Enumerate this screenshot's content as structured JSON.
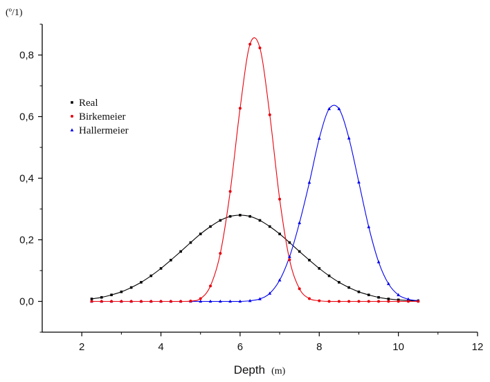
{
  "chart_data": {
    "type": "line",
    "title": "",
    "xlabel": "Depth",
    "xlabel_unit": "(m)",
    "ylabel": "(º/1)",
    "xlim": [
      1,
      12
    ],
    "ylim": [
      -0.1,
      0.9
    ],
    "xticks": [
      2,
      4,
      6,
      8,
      10,
      12
    ],
    "xtick_labels": [
      "2",
      "4",
      "6",
      "8",
      "10",
      "12"
    ],
    "yticks": [
      0.0,
      0.2,
      0.4,
      0.6,
      0.8
    ],
    "ytick_labels": [
      "0,0",
      "0,2",
      "0,4",
      "0,6",
      "0,8"
    ],
    "grid": false,
    "legend_position": "left",
    "series": [
      {
        "name": "Real",
        "color": "#000000",
        "marker": "square",
        "x": [
          2.25,
          2.5,
          2.75,
          3.0,
          3.25,
          3.5,
          3.75,
          4.0,
          4.25,
          4.5,
          4.75,
          5.0,
          5.25,
          5.5,
          5.75,
          6.0,
          6.25,
          6.5,
          6.75,
          7.0,
          7.25,
          7.5,
          7.75,
          8.0,
          8.25,
          8.5,
          8.75,
          9.0,
          9.25,
          9.5,
          9.75,
          10.0,
          10.25,
          10.5
        ],
        "y": [
          0.008,
          0.013,
          0.021,
          0.031,
          0.045,
          0.062,
          0.083,
          0.107,
          0.134,
          0.162,
          0.191,
          0.219,
          0.243,
          0.263,
          0.276,
          0.28,
          0.276,
          0.263,
          0.243,
          0.219,
          0.191,
          0.162,
          0.134,
          0.107,
          0.083,
          0.062,
          0.045,
          0.031,
          0.021,
          0.013,
          0.008,
          0.005,
          0.003,
          0.002
        ]
      },
      {
        "name": "Birkemeier",
        "color": "#e8000b",
        "marker": "circle",
        "x": [
          2.25,
          2.5,
          2.75,
          3.0,
          3.25,
          3.5,
          3.75,
          4.0,
          4.25,
          4.5,
          4.75,
          5.0,
          5.25,
          5.5,
          5.75,
          6.0,
          6.25,
          6.5,
          6.75,
          7.0,
          7.25,
          7.5,
          7.75,
          8.0,
          8.25,
          8.5,
          8.75,
          9.0,
          9.25,
          9.5,
          9.75,
          10.0,
          10.25,
          10.5
        ],
        "y": [
          0.0,
          0.0,
          0.0,
          0.0,
          0.0,
          0.0,
          0.0,
          0.0,
          0.0,
          0.0,
          0.001,
          0.009,
          0.05,
          0.156,
          0.357,
          0.627,
          0.835,
          0.823,
          0.606,
          0.332,
          0.135,
          0.041,
          0.009,
          0.002,
          0.0,
          0.0,
          0.0,
          0.0,
          0.0,
          0.0,
          0.0,
          0.0,
          0.0,
          0.0
        ]
      },
      {
        "name": "Hallermeier",
        "color": "#0000ee",
        "marker": "triangle",
        "x": [
          2.25,
          2.5,
          2.75,
          3.0,
          3.25,
          3.5,
          3.75,
          4.0,
          4.25,
          4.5,
          4.75,
          5.0,
          5.25,
          5.5,
          5.75,
          6.0,
          6.25,
          6.5,
          6.75,
          7.0,
          7.25,
          7.5,
          7.75,
          8.0,
          8.25,
          8.5,
          8.75,
          9.0,
          9.25,
          9.5,
          9.75,
          10.0,
          10.25,
          10.5
        ],
        "y": [
          0.0,
          0.0,
          0.0,
          0.0,
          0.0,
          0.0,
          0.0,
          0.0,
          0.0,
          0.0,
          0.0,
          0.0,
          0.0,
          0.0,
          0.0,
          0.0,
          0.002,
          0.008,
          0.026,
          0.069,
          0.145,
          0.255,
          0.386,
          0.529,
          0.625,
          0.625,
          0.53,
          0.387,
          0.242,
          0.128,
          0.057,
          0.021,
          0.007,
          0.002
        ]
      }
    ]
  }
}
